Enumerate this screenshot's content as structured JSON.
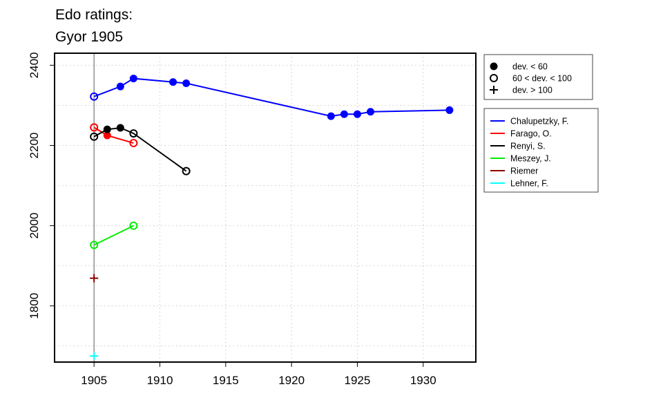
{
  "chart_data": {
    "type": "line",
    "title": [
      "Edo ratings:",
      "Gyor 1905"
    ],
    "xlabel": "",
    "ylabel": "",
    "xlim": [
      1902,
      1934
    ],
    "ylim": [
      1660,
      2430
    ],
    "x_ticks": [
      1905,
      1910,
      1915,
      1920,
      1925,
      1930
    ],
    "y_ticks": [
      1800,
      2000,
      2200,
      2400
    ],
    "grid": true,
    "reference_x": 1905,
    "marker_legend": {
      "placement": "top-right-outside",
      "entries": [
        {
          "symbol": "filled-circle",
          "label": "dev. < 60"
        },
        {
          "symbol": "open-circle",
          "label": "60 < dev. < 100"
        },
        {
          "symbol": "plus",
          "label": "dev. > 100"
        }
      ]
    },
    "series": [
      {
        "name": "Chalupetzky, F.",
        "color": "#0000ff",
        "points": [
          {
            "x": 1905,
            "y": 2322,
            "marker": "open-circle"
          },
          {
            "x": 1907,
            "y": 2347,
            "marker": "filled-circle"
          },
          {
            "x": 1908,
            "y": 2367,
            "marker": "filled-circle"
          },
          {
            "x": 1911,
            "y": 2358,
            "marker": "filled-circle"
          },
          {
            "x": 1912,
            "y": 2355,
            "marker": "filled-circle"
          },
          {
            "x": 1923,
            "y": 2273,
            "marker": "filled-circle"
          },
          {
            "x": 1924,
            "y": 2278,
            "marker": "filled-circle"
          },
          {
            "x": 1925,
            "y": 2278,
            "marker": "filled-circle"
          },
          {
            "x": 1926,
            "y": 2284,
            "marker": "filled-circle"
          },
          {
            "x": 1932,
            "y": 2288,
            "marker": "filled-circle"
          }
        ]
      },
      {
        "name": "Farago, O.",
        "color": "#ff0000",
        "points": [
          {
            "x": 1905,
            "y": 2245,
            "marker": "open-circle"
          },
          {
            "x": 1906,
            "y": 2225,
            "marker": "filled-circle"
          },
          {
            "x": 1908,
            "y": 2206,
            "marker": "open-circle"
          }
        ]
      },
      {
        "name": "Renyi, S.",
        "color": "#000000",
        "points": [
          {
            "x": 1905,
            "y": 2222,
            "marker": "open-circle"
          },
          {
            "x": 1906,
            "y": 2240,
            "marker": "filled-circle"
          },
          {
            "x": 1907,
            "y": 2244,
            "marker": "filled-circle"
          },
          {
            "x": 1908,
            "y": 2230,
            "marker": "open-circle"
          },
          {
            "x": 1912,
            "y": 2136,
            "marker": "open-circle"
          }
        ]
      },
      {
        "name": "Meszey, J.",
        "color": "#00ee00",
        "points": [
          {
            "x": 1905,
            "y": 1952,
            "marker": "open-circle"
          },
          {
            "x": 1908,
            "y": 2000,
            "marker": "open-circle"
          }
        ]
      },
      {
        "name": "Riemer",
        "color": "#8b0000",
        "points": [
          {
            "x": 1905,
            "y": 1869,
            "marker": "plus"
          }
        ]
      },
      {
        "name": "Lehner, F.",
        "color": "#00ffff",
        "points": [
          {
            "x": 1905,
            "y": 1675,
            "marker": "plus"
          }
        ]
      }
    ]
  }
}
